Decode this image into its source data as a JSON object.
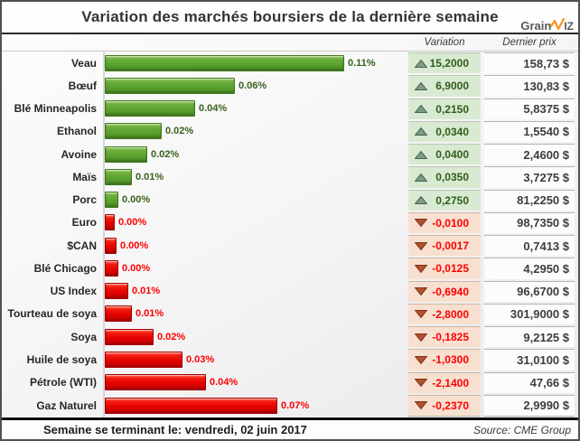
{
  "header": {
    "title": "Variation des marchés boursiers de la dernière semaine",
    "logo": {
      "part_grain": "Grain",
      "part_iz": "iz",
      "w_icon": "orange-zigzag-w-icon",
      "accent_color": "#f7941e",
      "text_color": "#58595b"
    }
  },
  "table_headers": {
    "variation": "Variation",
    "last_price": "Dernier prix"
  },
  "footer": {
    "week_ending": "Semaine se terminant le: vendredi, 02 juin 2017",
    "source": "Source: CME Group"
  },
  "colors": {
    "bar_up": "#5ba32f",
    "bar_down": "#e50300",
    "pct_up_text": "#38611c",
    "pct_down_text": "#fd0000",
    "variation_up_bg": "#d9ead3",
    "variation_down_bg": "#f8e0d0",
    "triangle_up_fill": "#7e9c85",
    "triangle_up_stroke": "#47634d",
    "triangle_down_fill": "#b2512e",
    "triangle_down_stroke": "#81341c",
    "price_text": "#3d3d3d"
  },
  "chart_data": {
    "type": "bar",
    "orientation": "horizontal",
    "title": "Variation des marchés boursiers de la dernière semaine",
    "columns": [
      "Variation",
      "Dernier prix"
    ],
    "legend": "none",
    "grid": "off",
    "rows": [
      {
        "name": "Veau",
        "pct_label": "0.11%",
        "bar_frac": 1.0,
        "direction": "up",
        "variation": "15,2000",
        "last_price": "158,73 $"
      },
      {
        "name": "Bœuf",
        "pct_label": "0.06%",
        "bar_frac": 0.544,
        "direction": "up",
        "variation": "6,9000",
        "last_price": "130,83 $"
      },
      {
        "name": "Blé Minneapolis",
        "pct_label": "0.04%",
        "bar_frac": 0.376,
        "direction": "up",
        "variation": "0,2150",
        "last_price": "5,8375 $"
      },
      {
        "name": "Ethanol",
        "pct_label": "0.02%",
        "bar_frac": 0.236,
        "direction": "up",
        "variation": "0,0340",
        "last_price": "1,5540 $"
      },
      {
        "name": "Avoine",
        "pct_label": "0.02%",
        "bar_frac": 0.179,
        "direction": "up",
        "variation": "0,0400",
        "last_price": "2,4600 $"
      },
      {
        "name": "Maïs",
        "pct_label": "0.01%",
        "bar_frac": 0.114,
        "direction": "up",
        "variation": "0,0350",
        "last_price": "3,7275 $"
      },
      {
        "name": "Porc",
        "pct_label": "0.00%",
        "bar_frac": 0.057,
        "direction": "up",
        "variation": "0,2750",
        "last_price": "81,2250 $"
      },
      {
        "name": "Euro",
        "pct_label": "0.00%",
        "bar_frac": 0.042,
        "direction": "down",
        "variation": "-0,0100",
        "last_price": "98,7350 $"
      },
      {
        "name": "$CAN",
        "pct_label": "0.00%",
        "bar_frac": 0.049,
        "direction": "down",
        "variation": "-0,0017",
        "last_price": "0,7413 $"
      },
      {
        "name": "Blé Chicago",
        "pct_label": "0.00%",
        "bar_frac": 0.057,
        "direction": "down",
        "variation": "-0,0125",
        "last_price": "4,2950 $"
      },
      {
        "name": "US Index",
        "pct_label": "0.01%",
        "bar_frac": 0.099,
        "direction": "down",
        "variation": "-0,6940",
        "last_price": "96,6700 $"
      },
      {
        "name": "Tourteau de soya",
        "pct_label": "0.01%",
        "bar_frac": 0.114,
        "direction": "down",
        "variation": "-2,8000",
        "last_price": "301,9000 $"
      },
      {
        "name": "Soya",
        "pct_label": "0.02%",
        "bar_frac": 0.205,
        "direction": "down",
        "variation": "-0,1825",
        "last_price": "9,2125 $"
      },
      {
        "name": "Huile de soya",
        "pct_label": "0.03%",
        "bar_frac": 0.323,
        "direction": "down",
        "variation": "-1,0300",
        "last_price": "31,0100 $"
      },
      {
        "name": "Pétrole (WTI)",
        "pct_label": "0.04%",
        "bar_frac": 0.422,
        "direction": "down",
        "variation": "-2,1400",
        "last_price": "47,66 $"
      },
      {
        "name": "Gaz Naturel",
        "pct_label": "0.07%",
        "bar_frac": 0.722,
        "direction": "down",
        "variation": "-0,2370",
        "last_price": "2,9990 $"
      }
    ]
  }
}
